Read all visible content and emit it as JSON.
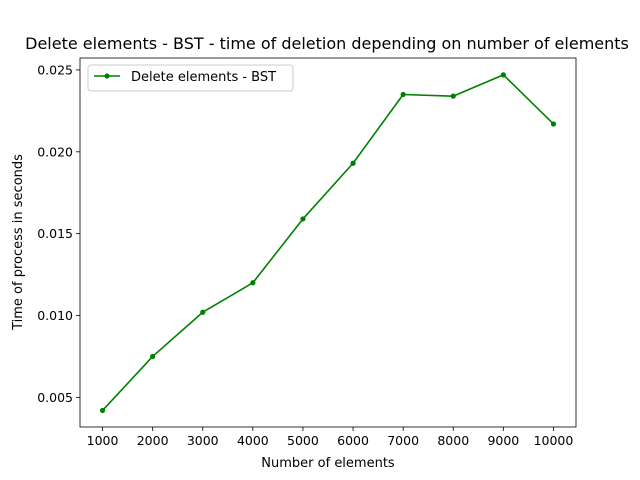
{
  "chart_data": {
    "type": "line",
    "title": "Delete elements - BST - time of deletion depending on number of elements",
    "xlabel": "Number of elements",
    "ylabel": "Time of process in seconds",
    "x": [
      1000,
      2000,
      3000,
      4000,
      5000,
      6000,
      7000,
      8000,
      9000,
      10000
    ],
    "series": [
      {
        "name": "Delete elements - BST",
        "color": "#008000",
        "marker": "point",
        "values": [
          0.0042,
          0.0075,
          0.0102,
          0.012,
          0.0159,
          0.0193,
          0.0235,
          0.0234,
          0.0247,
          0.0217
        ]
      }
    ],
    "xticks": [
      "1000",
      "2000",
      "3000",
      "4000",
      "5000",
      "6000",
      "7000",
      "8000",
      "9000",
      "10000"
    ],
    "yticks": [
      {
        "value": 0.005,
        "label": "0.005"
      },
      {
        "value": 0.01,
        "label": "0.010"
      },
      {
        "value": 0.015,
        "label": "0.015"
      },
      {
        "value": 0.02,
        "label": "0.020"
      },
      {
        "value": 0.025,
        "label": "0.025"
      }
    ],
    "xlim": [
      550,
      10450
    ],
    "ylim": [
      0.00319,
      0.02573
    ],
    "grid": false,
    "legend_position": "top-left"
  }
}
